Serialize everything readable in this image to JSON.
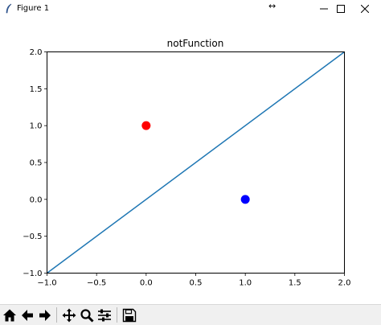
{
  "window": {
    "title": "Figure 1",
    "resize_glyph": "↔",
    "controls": [
      "minimize-icon",
      "maximize-icon",
      "close-icon"
    ]
  },
  "toolbar": {
    "buttons": [
      "home-icon",
      "back-icon",
      "forward-icon",
      "pan-icon",
      "zoom-icon",
      "configure-subplots-icon",
      "save-icon"
    ]
  },
  "chart_data": {
    "type": "scatter",
    "title": "notFunction",
    "xlabel": "",
    "ylabel": "",
    "xlim": [
      -1.0,
      2.0
    ],
    "ylim": [
      -1.0,
      2.0
    ],
    "x_ticks": [
      "−1.0",
      "−0.5",
      "0.0",
      "0.5",
      "1.0",
      "1.5",
      "2.0"
    ],
    "y_ticks": [
      "−1.0",
      "−0.5",
      "0.0",
      "0.5",
      "1.0",
      "1.5",
      "2.0"
    ],
    "grid": false,
    "series": [
      {
        "type": "line",
        "color": "#1f77b4",
        "x": [
          -1,
          2
        ],
        "y": [
          -1,
          2
        ]
      },
      {
        "type": "point",
        "color": "#ff0000",
        "x": [
          0
        ],
        "y": [
          1
        ]
      },
      {
        "type": "point",
        "color": "#0000ff",
        "x": [
          1
        ],
        "y": [
          0
        ]
      }
    ]
  }
}
